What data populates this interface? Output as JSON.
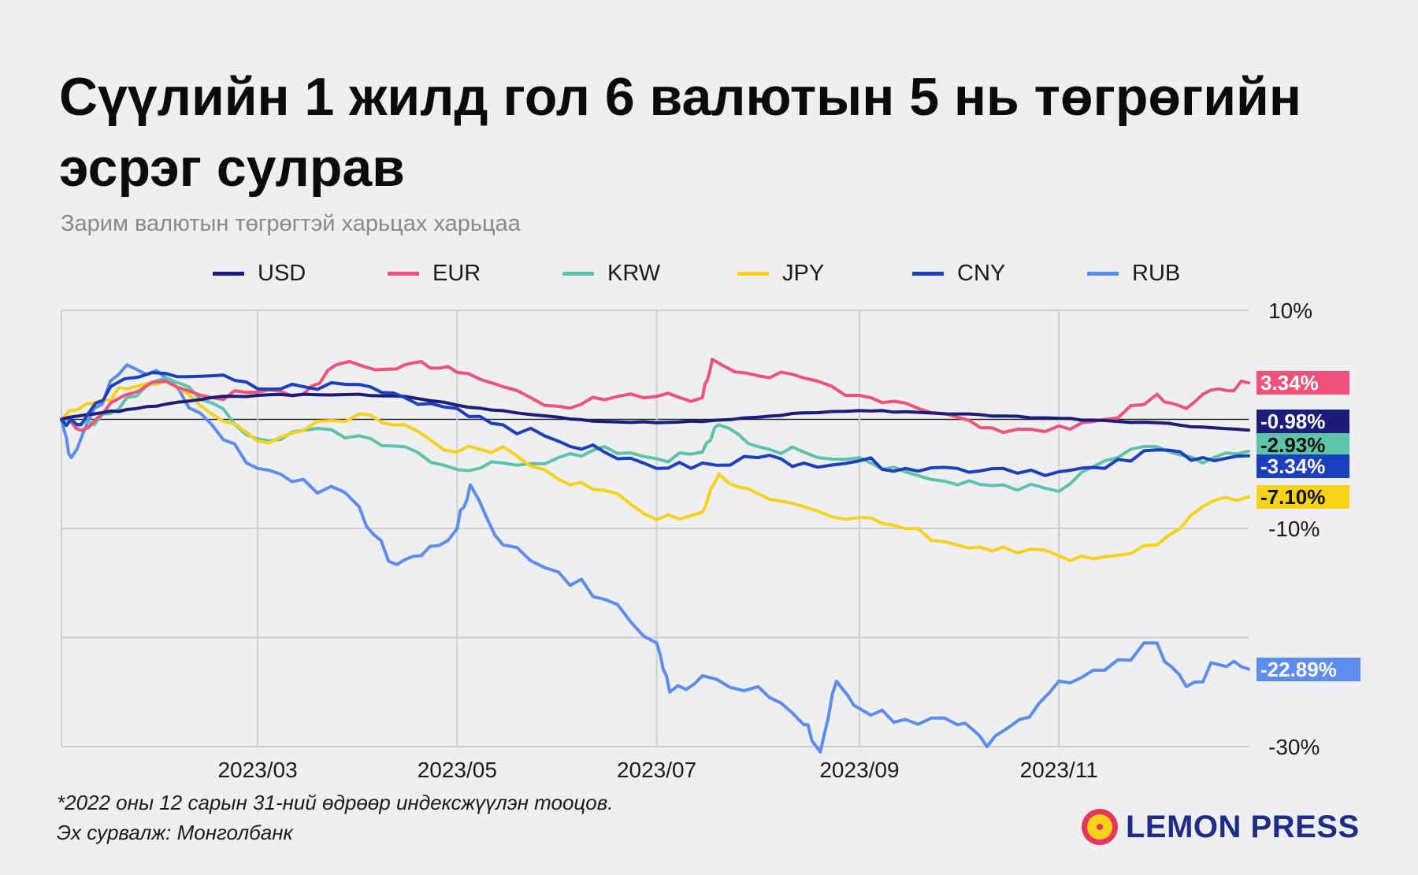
{
  "title": "Сүүлийн 1 жилд гол 6 валютын 5 нь төгрөгийн эсрэг сулрав",
  "subtitle": "Зарим валютын төгрөгтэй харьцах харьцаа",
  "footnote_lines": [
    "*2022 оны 12 сарын 31-ний өдрөөр индексжүүлэн тооцов.",
    "Эх сурвалж: Монголбанк"
  ],
  "brand": "LEMON PRESS",
  "colors": {
    "background": "#efeff1",
    "USD": "#1c1c7a",
    "EUR": "#f0517a",
    "KRW": "#5cc4a9",
    "JPY": "#f7d219",
    "CNY": "#1a3fbf",
    "RUB": "#5b8def",
    "brand_pink": "#e8365f",
    "brand_yellow": "#f7d219",
    "brand_text": "#1f2d8a"
  },
  "chart_data": {
    "type": "line",
    "x_axis": {
      "start": "2022-12-31",
      "end": "2023-12-29",
      "tick_labels": [
        "2023/03",
        "2023/05",
        "2023/07",
        "2023/09",
        "2023/11"
      ],
      "tick_dates": [
        "2023-03-01",
        "2023-05-01",
        "2023-07-01",
        "2023-09-01",
        "2023-11-01"
      ]
    },
    "y_axis": {
      "unit": "%",
      "range": [
        -30,
        10
      ],
      "gridlines": [
        10,
        0,
        -10,
        -20,
        -30
      ],
      "tick_labels": [
        {
          "value": 10,
          "label": "10%"
        },
        {
          "value": -10,
          "label": "-10%"
        },
        {
          "value": -30,
          "label": "-30%"
        }
      ],
      "position": "right"
    },
    "grid": "vertical at ticks, horizontal every 10%",
    "legend_position": "top",
    "series": [
      {
        "name": "USD",
        "end_label": "-0.98%",
        "points": [
          [
            "2022-12-31",
            0
          ],
          [
            "2023-01-10",
            0.5
          ],
          [
            "2023-01-20",
            0.9
          ],
          [
            "2023-02-01",
            1.4
          ],
          [
            "2023-02-15",
            2.0
          ],
          [
            "2023-03-01",
            2.2
          ],
          [
            "2023-03-15",
            2.3
          ],
          [
            "2023-04-01",
            2.3
          ],
          [
            "2023-04-15",
            2.1
          ],
          [
            "2023-05-01",
            1.3
          ],
          [
            "2023-05-15",
            0.8
          ],
          [
            "2023-06-01",
            0.2
          ],
          [
            "2023-06-15",
            -0.2
          ],
          [
            "2023-07-01",
            -0.3
          ],
          [
            "2023-07-15",
            -0.2
          ],
          [
            "2023-08-01",
            0.2
          ],
          [
            "2023-08-15",
            0.6
          ],
          [
            "2023-09-01",
            0.8
          ],
          [
            "2023-09-15",
            0.7
          ],
          [
            "2023-10-01",
            0.5
          ],
          [
            "2023-10-15",
            0.3
          ],
          [
            "2023-11-01",
            0.1
          ],
          [
            "2023-11-15",
            -0.1
          ],
          [
            "2023-12-01",
            -0.3
          ],
          [
            "2023-12-15",
            -0.7
          ],
          [
            "2023-12-29",
            -0.98
          ]
        ]
      },
      {
        "name": "EUR",
        "end_label": "3.34%",
        "points": [
          [
            "2022-12-31",
            0
          ],
          [
            "2023-01-06",
            -1.0
          ],
          [
            "2023-01-15",
            1.5
          ],
          [
            "2023-02-01",
            3.5
          ],
          [
            "2023-02-15",
            2.0
          ],
          [
            "2023-03-01",
            2.5
          ],
          [
            "2023-03-15",
            2.3
          ],
          [
            "2023-03-25",
            5.0
          ],
          [
            "2023-04-10",
            4.6
          ],
          [
            "2023-04-20",
            5.3
          ],
          [
            "2023-05-01",
            4.3
          ],
          [
            "2023-05-15",
            3.0
          ],
          [
            "2023-06-01",
            1.2
          ],
          [
            "2023-06-15",
            1.8
          ],
          [
            "2023-07-01",
            2.1
          ],
          [
            "2023-07-15",
            2.0
          ],
          [
            "2023-07-18",
            5.5
          ],
          [
            "2023-08-01",
            4.0
          ],
          [
            "2023-08-15",
            3.8
          ],
          [
            "2023-09-01",
            2.2
          ],
          [
            "2023-09-15",
            1.5
          ],
          [
            "2023-10-01",
            0.2
          ],
          [
            "2023-10-15",
            -1.2
          ],
          [
            "2023-11-01",
            -0.6
          ],
          [
            "2023-11-15",
            0.0
          ],
          [
            "2023-12-01",
            2.3
          ],
          [
            "2023-12-10",
            1.0
          ],
          [
            "2023-12-20",
            2.8
          ],
          [
            "2023-12-29",
            3.34
          ]
        ]
      },
      {
        "name": "KRW",
        "end_label": "-2.93%",
        "points": [
          [
            "2022-12-31",
            0
          ],
          [
            "2023-01-10",
            -0.5
          ],
          [
            "2023-01-20",
            2.0
          ],
          [
            "2023-02-01",
            3.8
          ],
          [
            "2023-02-15",
            1.5
          ],
          [
            "2023-03-01",
            -1.8
          ],
          [
            "2023-03-15",
            -1.0
          ],
          [
            "2023-04-01",
            -1.5
          ],
          [
            "2023-04-15",
            -2.5
          ],
          [
            "2023-05-01",
            -4.6
          ],
          [
            "2023-05-15",
            -4.0
          ],
          [
            "2023-06-01",
            -3.5
          ],
          [
            "2023-06-15",
            -2.5
          ],
          [
            "2023-07-01",
            -3.6
          ],
          [
            "2023-07-15",
            -3.0
          ],
          [
            "2023-07-20",
            -0.5
          ],
          [
            "2023-08-01",
            -2.5
          ],
          [
            "2023-08-15",
            -3.0
          ],
          [
            "2023-09-01",
            -3.5
          ],
          [
            "2023-09-15",
            -4.8
          ],
          [
            "2023-10-01",
            -6.0
          ],
          [
            "2023-10-15",
            -6.0
          ],
          [
            "2023-11-01",
            -6.6
          ],
          [
            "2023-11-15",
            -3.8
          ],
          [
            "2023-12-01",
            -2.5
          ],
          [
            "2023-12-15",
            -4.0
          ],
          [
            "2023-12-29",
            -2.93
          ]
        ]
      },
      {
        "name": "JPY",
        "end_label": "-7.10%",
        "points": [
          [
            "2022-12-31",
            0
          ],
          [
            "2023-01-10",
            1.5
          ],
          [
            "2023-01-20",
            2.8
          ],
          [
            "2023-02-01",
            3.5
          ],
          [
            "2023-02-15",
            0.5
          ],
          [
            "2023-03-01",
            -2.0
          ],
          [
            "2023-03-15",
            -1.0
          ],
          [
            "2023-04-01",
            0.5
          ],
          [
            "2023-04-15",
            -0.5
          ],
          [
            "2023-05-01",
            -3.0
          ],
          [
            "2023-05-15",
            -2.5
          ],
          [
            "2023-06-01",
            -5.5
          ],
          [
            "2023-06-15",
            -6.5
          ],
          [
            "2023-07-01",
            -9.2
          ],
          [
            "2023-07-15",
            -8.5
          ],
          [
            "2023-07-20",
            -5.0
          ],
          [
            "2023-08-01",
            -6.8
          ],
          [
            "2023-08-15",
            -8.0
          ],
          [
            "2023-09-01",
            -9.0
          ],
          [
            "2023-09-15",
            -10.0
          ],
          [
            "2023-10-01",
            -11.5
          ],
          [
            "2023-10-15",
            -11.7
          ],
          [
            "2023-11-01",
            -12.5
          ],
          [
            "2023-11-15",
            -12.6
          ],
          [
            "2023-12-01",
            -11.5
          ],
          [
            "2023-12-15",
            -8.0
          ],
          [
            "2023-12-29",
            -7.1
          ]
        ]
      },
      {
        "name": "CNY",
        "end_label": "-3.34%",
        "points": [
          [
            "2022-12-31",
            0
          ],
          [
            "2023-01-06",
            -0.5
          ],
          [
            "2023-01-15",
            3.0
          ],
          [
            "2023-02-01",
            4.2
          ],
          [
            "2023-02-15",
            4.0
          ],
          [
            "2023-03-01",
            2.8
          ],
          [
            "2023-03-15",
            3.0
          ],
          [
            "2023-04-01",
            3.2
          ],
          [
            "2023-04-15",
            2.0
          ],
          [
            "2023-05-01",
            1.0
          ],
          [
            "2023-05-15",
            -0.5
          ],
          [
            "2023-06-01",
            -2.0
          ],
          [
            "2023-06-15",
            -3.0
          ],
          [
            "2023-07-01",
            -4.5
          ],
          [
            "2023-07-15",
            -4.0
          ],
          [
            "2023-08-01",
            -3.5
          ],
          [
            "2023-08-15",
            -4.0
          ],
          [
            "2023-09-01",
            -3.8
          ],
          [
            "2023-09-15",
            -4.5
          ],
          [
            "2023-10-01",
            -4.5
          ],
          [
            "2023-10-15",
            -4.5
          ],
          [
            "2023-11-01",
            -4.8
          ],
          [
            "2023-11-15",
            -4.5
          ],
          [
            "2023-12-01",
            -2.8
          ],
          [
            "2023-12-15",
            -3.5
          ],
          [
            "2023-12-29",
            -3.34
          ]
        ]
      },
      {
        "name": "RUB",
        "end_label": "-22.89%",
        "points": [
          [
            "2022-12-31",
            0
          ],
          [
            "2023-01-03",
            -3.5
          ],
          [
            "2023-01-10",
            1.0
          ],
          [
            "2023-01-20",
            5.0
          ],
          [
            "2023-02-01",
            3.8
          ],
          [
            "2023-02-15",
            -0.5
          ],
          [
            "2023-03-01",
            -4.5
          ],
          [
            "2023-03-15",
            -5.5
          ],
          [
            "2023-04-01",
            -8.0
          ],
          [
            "2023-04-10",
            -13.0
          ],
          [
            "2023-04-20",
            -12.5
          ],
          [
            "2023-05-01",
            -10.0
          ],
          [
            "2023-05-05",
            -6.0
          ],
          [
            "2023-05-15",
            -11.5
          ],
          [
            "2023-06-01",
            -14.0
          ],
          [
            "2023-06-15",
            -16.5
          ],
          [
            "2023-07-01",
            -20.5
          ],
          [
            "2023-07-05",
            -25.0
          ],
          [
            "2023-07-15",
            -23.5
          ],
          [
            "2023-08-01",
            -24.5
          ],
          [
            "2023-08-15",
            -28.0
          ],
          [
            "2023-08-20",
            -30.5
          ],
          [
            "2023-08-25",
            -24.0
          ],
          [
            "2023-09-01",
            -26.5
          ],
          [
            "2023-09-15",
            -27.5
          ],
          [
            "2023-10-01",
            -28.0
          ],
          [
            "2023-10-10",
            -30.0
          ],
          [
            "2023-10-20",
            -27.5
          ],
          [
            "2023-11-01",
            -24.0
          ],
          [
            "2023-11-15",
            -23.0
          ],
          [
            "2023-12-01",
            -20.5
          ],
          [
            "2023-12-10",
            -24.5
          ],
          [
            "2023-12-20",
            -22.5
          ],
          [
            "2023-12-29",
            -22.89
          ]
        ]
      }
    ]
  }
}
